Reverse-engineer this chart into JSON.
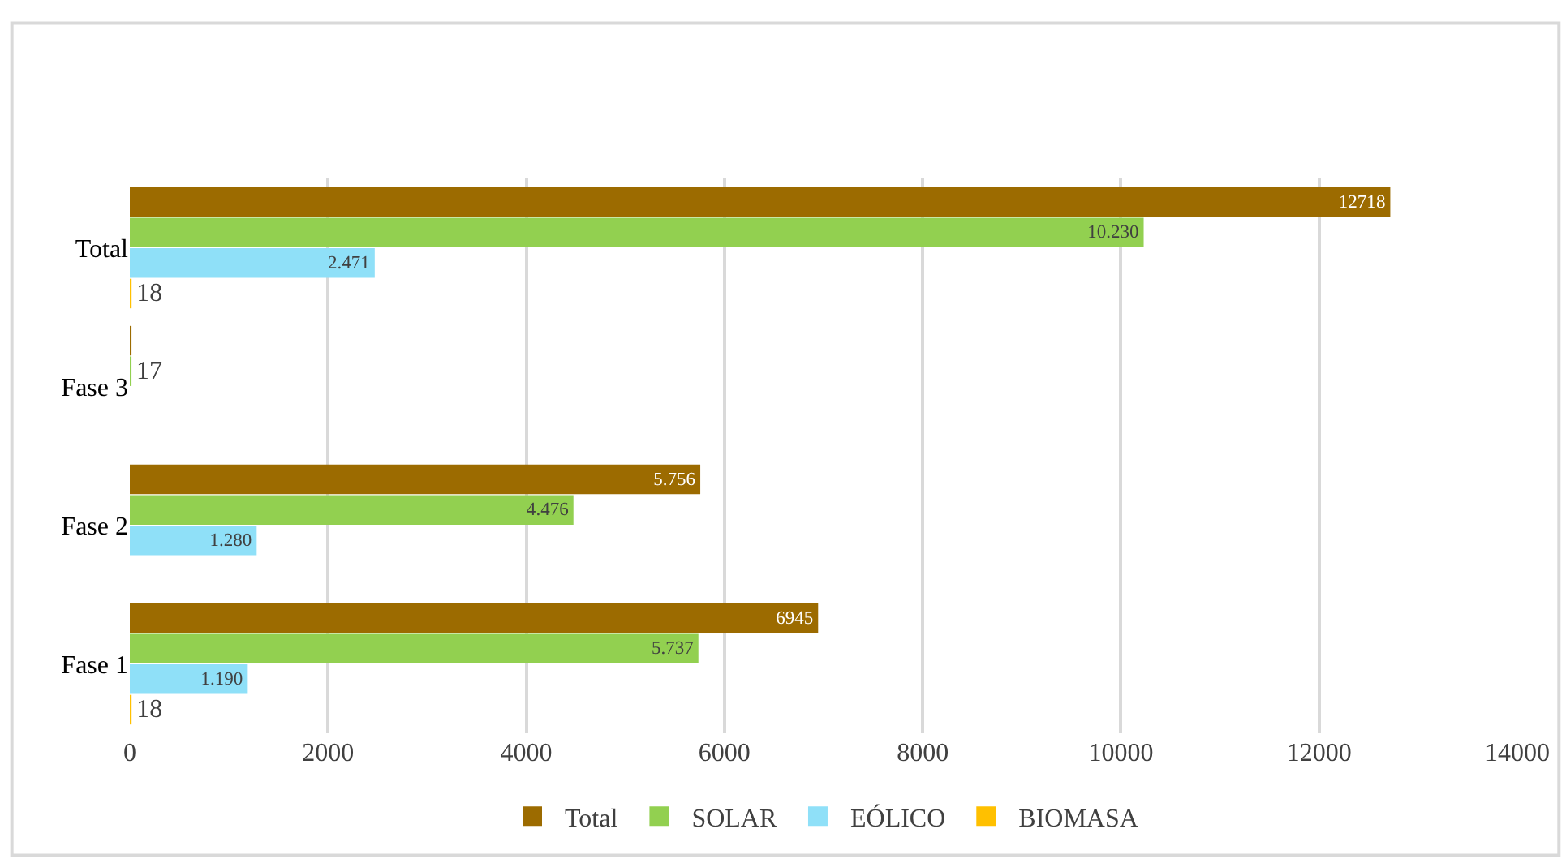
{
  "chart_data": {
    "type": "bar",
    "orientation": "horizontal",
    "categories": [
      "Total",
      "Fase 3",
      "Fase 2",
      "Fase 1"
    ],
    "series": [
      {
        "name": "Total",
        "color": "#9c6b00",
        "values": [
          12718,
          17,
          5756,
          6945
        ],
        "value_labels": [
          "12718",
          null,
          "5.756",
          "6945"
        ]
      },
      {
        "name": "SOLAR",
        "color": "#92d050",
        "values": [
          10230,
          17,
          4476,
          5737
        ],
        "value_labels": [
          "10.230",
          "17",
          "4.476",
          "5.737"
        ]
      },
      {
        "name": "EÓLICO",
        "color": "#8fe0f8",
        "values": [
          2471,
          null,
          1280,
          1190
        ],
        "value_labels": [
          "2.471",
          null,
          "1.280",
          "1.190"
        ]
      },
      {
        "name": "BIOMASA",
        "color": "#ffc000",
        "values": [
          18,
          null,
          null,
          18
        ],
        "value_labels": [
          "18",
          null,
          null,
          "18"
        ]
      }
    ],
    "xlim": [
      0,
      14000
    ],
    "xticks": [
      0,
      2000,
      4000,
      6000,
      8000,
      10000,
      12000,
      14000
    ],
    "grid": "x",
    "legend": "bottom"
  }
}
